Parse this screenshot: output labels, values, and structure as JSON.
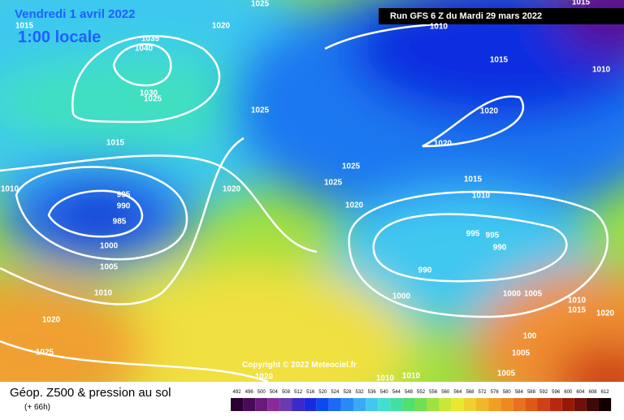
{
  "header": {
    "date": "Vendredi 1 avril 2022",
    "time": "1:00 locale",
    "run": "Run GFS 6 Z du Mardi 29 mars 2022"
  },
  "copyright": "Copyright © 2022 Meteociel.fr",
  "footer": {
    "title": "Géop. Z500 & pression au sol",
    "lead": "(+ 66h)"
  },
  "isobar_labels": [
    "1025",
    "1015",
    "1020",
    "1010",
    "1015",
    "1035",
    "1040",
    "1015",
    "1010",
    "1030",
    "1025",
    "1025",
    "1020",
    "1015",
    "1020",
    "1025",
    "1015",
    "1025",
    "1020",
    "1010",
    "995",
    "1010",
    "990",
    "1020",
    "985",
    "995",
    "995",
    "1000",
    "990",
    "1005",
    "990",
    "1010",
    "1000",
    "1000",
    "1005",
    "1010",
    "1015",
    "1020",
    "1020",
    "100",
    "1025",
    "1005",
    "1010",
    "1010",
    "1005",
    "1020"
  ],
  "legend": {
    "levels": [
      492,
      496,
      500,
      504,
      508,
      512,
      516,
      520,
      524,
      528,
      532,
      536,
      540,
      544,
      548,
      552,
      556,
      560,
      564,
      568,
      572,
      576,
      580,
      584,
      588,
      592,
      596,
      600,
      604,
      608,
      612
    ],
    "colors": [
      "#2a0030",
      "#4a0a5a",
      "#6a1a7a",
      "#8a2a9a",
      "#6a3ab0",
      "#3a2ac8",
      "#1a2ae0",
      "#0a4af0",
      "#1a6af5",
      "#2a8af5",
      "#3aaaf5",
      "#40c8f0",
      "#40e0d0",
      "#40e0a0",
      "#50e070",
      "#70e050",
      "#a0e040",
      "#c8e838",
      "#e8e830",
      "#f0d030",
      "#f0b828",
      "#f0a020",
      "#f08820",
      "#e87020",
      "#e05818",
      "#d04018",
      "#b82810",
      "#981808",
      "#701008",
      "#400808",
      "#100000"
    ]
  }
}
